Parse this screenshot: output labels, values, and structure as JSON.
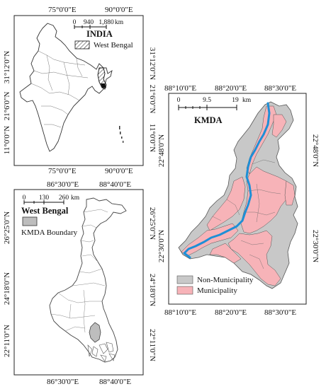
{
  "india": {
    "top_labels": [
      "75°0'0\"E",
      "90°0'0\"E"
    ],
    "bottom_labels": [
      "75°0'0\"E",
      "90°0'0\"E"
    ],
    "left_labels": [
      "31°12'0\"N",
      "21°6'0\"N",
      "11°0'0\"N"
    ],
    "right_labels": [
      "31°12'0\"N",
      "21°6'0\"N",
      "11°0'0\"N"
    ],
    "scale_ticks": [
      "0",
      "940",
      "1,880"
    ],
    "scale_unit": "km",
    "title": "INDIA",
    "legend_label": "West Bengal"
  },
  "west_bengal": {
    "top_labels": [
      "86°30'0\"E",
      "88°40'0\"E"
    ],
    "bottom_labels": [
      "86°30'0\"E",
      "88°40'0\"E"
    ],
    "left_labels": [
      "26°25'0\"N",
      "24°18'0\"N",
      "22°11'0\"N"
    ],
    "right_labels": [
      "26°25'0\"N",
      "24°18'0\"N",
      "22°11'0\"N"
    ],
    "scale_ticks": [
      "0",
      "130",
      "260"
    ],
    "scale_unit": "km",
    "title": "West Bengal",
    "legend_label": "KMDA Boundary"
  },
  "kmda": {
    "top_labels": [
      "88°10'0\"E",
      "88°20'0\"E",
      "88°30'0\"E"
    ],
    "bottom_labels": [
      "88°10'0\"E",
      "88°20'0\"E",
      "88°30'0\"E"
    ],
    "left_labels": [
      "22°48'0\"N",
      "22°30'0\"N"
    ],
    "right_labels": [
      "22°48'0\"N",
      "22°30'0\"N"
    ],
    "scale_ticks": [
      "0",
      "9.5",
      "19"
    ],
    "scale_unit": "km",
    "title": "KMDA",
    "legend": [
      {
        "label": "Non-Municipality",
        "color": "#c8c8c8"
      },
      {
        "label": "Municipality",
        "color": "#f7b3b8"
      }
    ],
    "river_color": "#1e8fd6"
  }
}
